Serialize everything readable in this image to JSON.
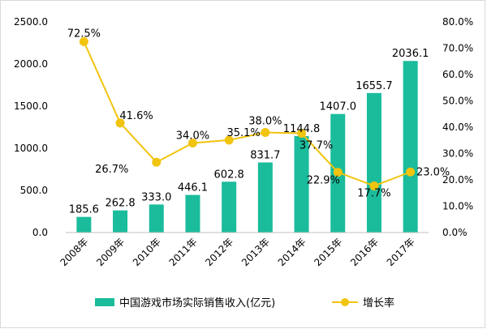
{
  "chart_data": {
    "type": "bar",
    "categories": [
      "2008年",
      "2009年",
      "2010年",
      "2011年",
      "2012年",
      "2013年",
      "2014年",
      "2015年",
      "2016年",
      "2017年"
    ],
    "series": [
      {
        "name": "中国游戏市场实际销售收入(亿元)",
        "type": "bar",
        "axis": "left",
        "values": [
          185.6,
          262.8,
          333.0,
          446.1,
          602.8,
          831.7,
          1144.8,
          1407.0,
          1655.7,
          2036.1
        ],
        "labels": [
          "185.6",
          "262.8",
          "333.0",
          "446.1",
          "602.8",
          "831.7",
          "1144.8",
          "1407.0",
          "1655.7",
          "2036.1"
        ]
      },
      {
        "name": "增长率",
        "type": "line",
        "axis": "right",
        "values": [
          72.5,
          41.6,
          26.7,
          34.0,
          35.1,
          38.0,
          37.7,
          22.9,
          17.7,
          23.0
        ],
        "labels": [
          "72.5%",
          "41.6%",
          "26.7%",
          "34.0%",
          "35.1%",
          "38.0%",
          "37.7%",
          "22.9%",
          "17.7%",
          "23.0%"
        ]
      }
    ],
    "left_axis": {
      "ylim": [
        0,
        2500
      ],
      "ticks": [
        "0.0",
        "500.0",
        "1000.0",
        "1500.0",
        "2000.0",
        "2500.0"
      ]
    },
    "right_axis": {
      "ylim": [
        0,
        80
      ],
      "ticks": [
        "0.0%",
        "10.0%",
        "20.0%",
        "30.0%",
        "40.0%",
        "50.0%",
        "60.0%",
        "70.0%",
        "80.0%"
      ]
    },
    "grid": false,
    "legend": "bottom",
    "colors": {
      "bar": "#1abc9c",
      "line": "#f1c40f",
      "axis": "#bfbfbf"
    }
  }
}
